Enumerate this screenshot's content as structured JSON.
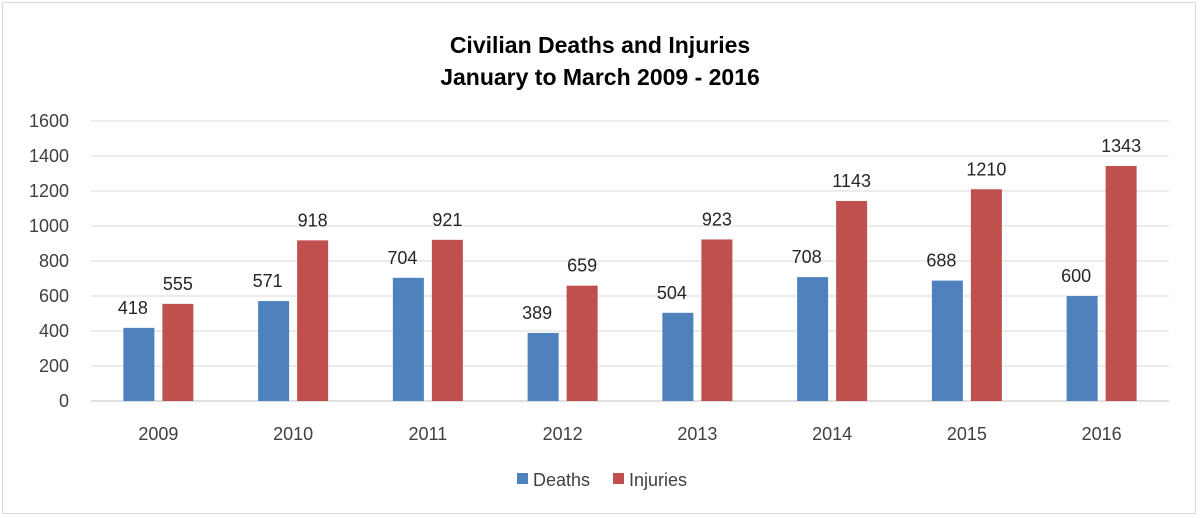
{
  "chart_data": {
    "type": "bar",
    "title": "Civilian Deaths and Injuries",
    "subtitle": "January to March 2009 - 2016",
    "categories": [
      "2009",
      "2010",
      "2011",
      "2012",
      "2013",
      "2014",
      "2015",
      "2016"
    ],
    "series": [
      {
        "name": "Deaths",
        "color": "#4f81bd",
        "values": [
          418,
          571,
          704,
          389,
          504,
          708,
          688,
          600
        ]
      },
      {
        "name": "Injuries",
        "color": "#c0504d",
        "values": [
          555,
          918,
          921,
          659,
          923,
          1143,
          1210,
          1343
        ]
      }
    ],
    "ylim": [
      0,
      1600
    ],
    "yticks": [
      "0",
      "200",
      "400",
      "600",
      "800",
      "1000",
      "1200",
      "1400",
      "1600"
    ],
    "grid": true,
    "legend_position": "bottom",
    "data_labels": true
  }
}
